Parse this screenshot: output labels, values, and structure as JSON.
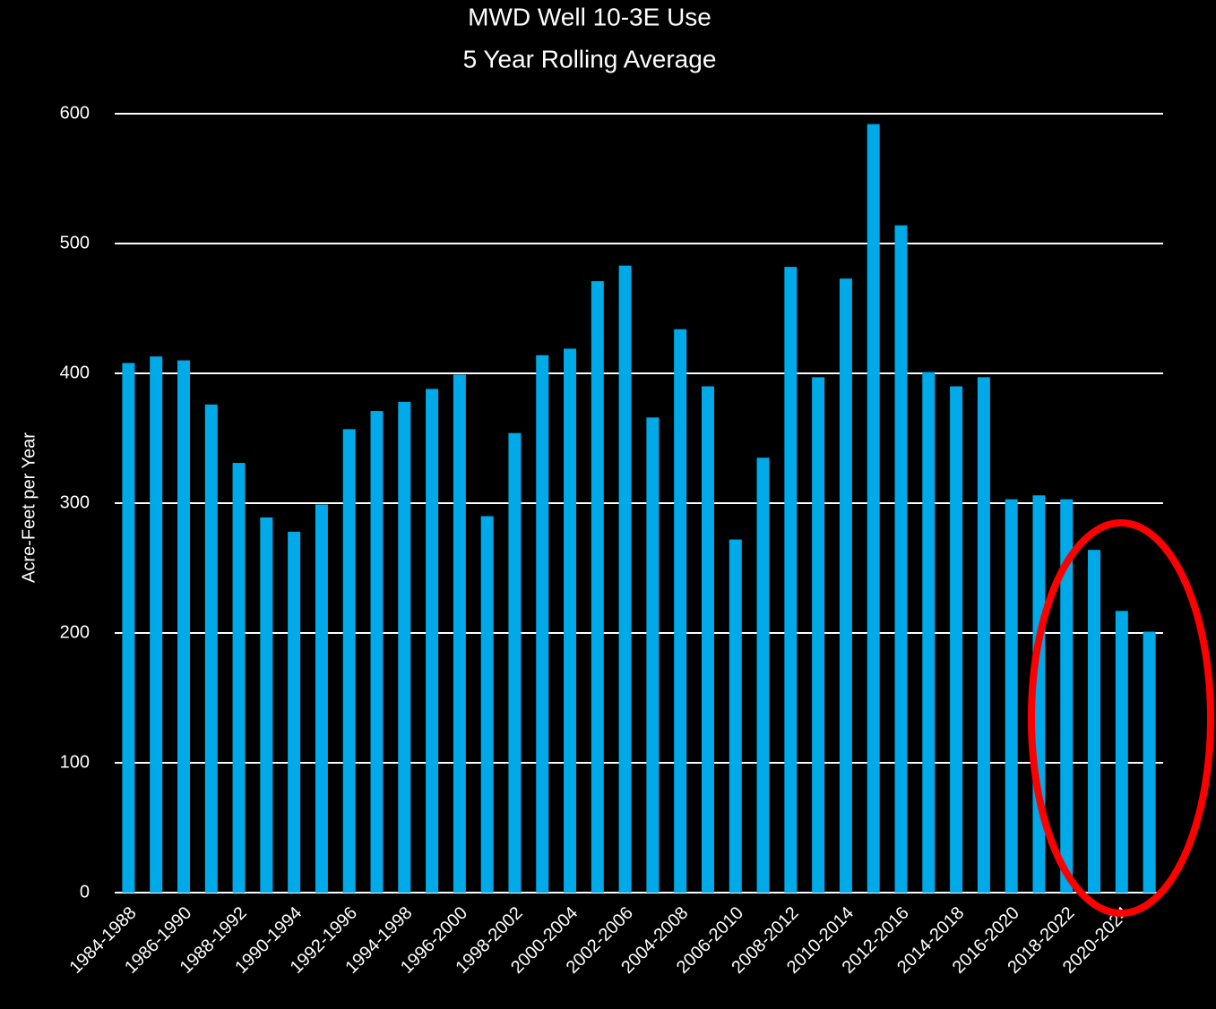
{
  "chart_data": {
    "type": "bar",
    "title": "MWD Well 10-3E Use",
    "subtitle": "5 Year Rolling Average",
    "y_label": "Acre-Feet per Year",
    "categories": [
      "1984-1988",
      null,
      "1986-1990",
      null,
      "1988-1992",
      null,
      "1990-1994",
      null,
      "1992-1996",
      null,
      "1994-1998",
      null,
      "1996-2000",
      null,
      "1998-2002",
      null,
      "2000-2004",
      null,
      "2002-2006",
      null,
      "2004-2008",
      null,
      "2006-2010",
      null,
      "2008-2012",
      null,
      "2010-2014",
      null,
      "2012-2016",
      null,
      "2014-2018",
      null,
      "2016-2020",
      null,
      "2018-2022",
      null,
      "2020-2024",
      null
    ],
    "values": [
      408,
      413,
      410,
      376,
      331,
      289,
      278,
      299,
      357,
      371,
      378,
      388,
      399,
      290,
      354,
      414,
      419,
      471,
      483,
      366,
      434,
      390,
      272,
      335,
      482,
      397,
      473,
      592,
      514,
      401,
      390,
      397,
      303,
      306,
      303,
      264,
      217,
      201
    ],
    "color": "#00a9e8",
    "ylim": [
      0,
      600
    ],
    "yticks": [
      0,
      100,
      200,
      300,
      400,
      500,
      600
    ],
    "grid": true
  }
}
